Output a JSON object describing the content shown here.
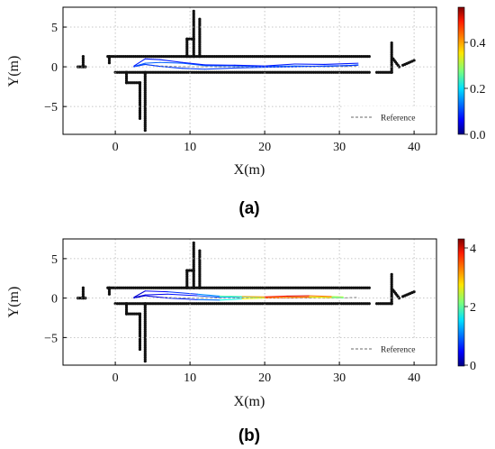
{
  "figure": {
    "panels": [
      {
        "caption": "(a)",
        "colorbar": {
          "ticks": [
            "0.0",
            "0.2",
            "0.4"
          ],
          "min": 0.0,
          "max": 0.55
        }
      },
      {
        "caption": "(b)",
        "colorbar": {
          "ticks": [
            "0",
            "2",
            "4"
          ],
          "min": 0.0,
          "max": 4.3
        }
      }
    ]
  },
  "chart_data": [
    {
      "type": "scatter",
      "panel": "a",
      "xlabel": "X(m)",
      "ylabel": "Y(m)",
      "xlim": [
        -7,
        43
      ],
      "ylim": [
        -8.5,
        7.5
      ],
      "xticks": [
        0,
        10,
        20,
        30,
        40
      ],
      "yticks": [
        5,
        0,
        -5
      ],
      "grid": true,
      "legend": {
        "entries": [
          "Reference"
        ],
        "placement": "lower-right"
      },
      "colormap": "jet",
      "colorbar_range": [
        0.0,
        0.55
      ],
      "reference": {
        "x": [
          2.5,
          3.5,
          6,
          10,
          15,
          20,
          25,
          30,
          32.5
        ],
        "y": [
          0,
          0.3,
          0.1,
          0,
          0,
          0,
          0,
          0,
          0.1
        ]
      },
      "trajectories": [
        {
          "x": [
            2.5,
            4,
            6,
            9,
            12,
            16,
            20,
            24,
            28,
            31,
            32.5
          ],
          "y": [
            0.05,
            0.45,
            0.55,
            0.45,
            0.15,
            0.1,
            0.05,
            0.1,
            0.05,
            0.15,
            0.25
          ],
          "error": 0.12
        },
        {
          "x": [
            2.5,
            4,
            6,
            9,
            12,
            16,
            20,
            24,
            28,
            31,
            32.5
          ],
          "y": [
            0,
            0.3,
            0.05,
            -0.2,
            -0.3,
            -0.15,
            -0.05,
            0,
            0.1,
            0.15,
            0.2
          ],
          "error": 0.1
        },
        {
          "x": [
            2.5,
            4,
            6,
            9,
            12,
            16,
            20,
            24,
            28,
            31,
            32.5
          ],
          "y": [
            0.1,
            1.0,
            0.9,
            0.55,
            0.25,
            0.2,
            0.1,
            0.35,
            0.3,
            0.4,
            0.45
          ],
          "error": 0.08
        }
      ],
      "map_segments": [
        {
          "x": [
            -1,
            34
          ],
          "y": [
            1.3,
            1.3
          ]
        },
        {
          "x": [
            0,
            34
          ],
          "y": [
            -0.7,
            -0.7
          ]
        },
        {
          "x": [
            -4.3,
            -4.3
          ],
          "y": [
            0,
            1.3
          ]
        },
        {
          "x": [
            -5,
            -4
          ],
          "y": [
            0,
            0
          ]
        },
        {
          "x": [
            -0.8,
            -0.8
          ],
          "y": [
            0.5,
            1.3
          ]
        },
        {
          "x": [
            1.5,
            1.5
          ],
          "y": [
            -0.7,
            -2
          ]
        },
        {
          "x": [
            1.5,
            3.3
          ],
          "y": [
            -2,
            -2
          ]
        },
        {
          "x": [
            3.3,
            3.3
          ],
          "y": [
            -2,
            -6.5
          ]
        },
        {
          "x": [
            4,
            4
          ],
          "y": [
            -0.7,
            -8
          ]
        },
        {
          "x": [
            9.6,
            9.6
          ],
          "y": [
            1.3,
            3.5
          ]
        },
        {
          "x": [
            10.5,
            10.5
          ],
          "y": [
            1.3,
            7
          ]
        },
        {
          "x": [
            11.3,
            11.3
          ],
          "y": [
            1.3,
            6
          ]
        },
        {
          "x": [
            9.6,
            10.5
          ],
          "y": [
            3.5,
            3.5
          ]
        },
        {
          "x": [
            35,
            37
          ],
          "y": [
            -0.7,
            -0.7
          ]
        },
        {
          "x": [
            37,
            37
          ],
          "y": [
            3,
            -0.7
          ]
        },
        {
          "x": [
            37.2,
            38
          ],
          "y": [
            1,
            0
          ]
        },
        {
          "x": [
            38.5,
            40
          ],
          "y": [
            0.2,
            0.8
          ]
        }
      ]
    },
    {
      "type": "scatter",
      "panel": "b",
      "xlabel": "X(m)",
      "ylabel": "Y(m)",
      "xlim": [
        -7,
        43
      ],
      "ylim": [
        -8.5,
        7.5
      ],
      "xticks": [
        0,
        10,
        20,
        30,
        40
      ],
      "yticks": [
        5,
        0,
        -5
      ],
      "grid": true,
      "legend": {
        "entries": [
          "Reference"
        ],
        "placement": "lower-right"
      },
      "colormap": "jet",
      "colorbar_range": [
        0.0,
        4.3
      ],
      "reference": {
        "x": [
          2.5,
          3.5,
          6,
          10,
          15,
          20,
          25,
          30,
          32.5
        ],
        "y": [
          0,
          0.3,
          0.1,
          0,
          0,
          0,
          0,
          0,
          0.1
        ]
      },
      "trajectories": [
        {
          "x": [
            2.5,
            4,
            7,
            11,
            14,
            17,
            20,
            23,
            26,
            29,
            30.5
          ],
          "y": [
            0.05,
            0.4,
            0.5,
            0.3,
            0.1,
            0.15,
            0.05,
            0.1,
            0.15,
            0.1,
            0.05
          ],
          "error": [
            0.3,
            0.4,
            0.5,
            0.7,
            1.0,
            1.6,
            2.4,
            3.0,
            2.8,
            2.0,
            1.6
          ]
        },
        {
          "x": [
            2.5,
            4,
            7,
            11,
            14,
            17,
            20,
            23,
            26,
            29,
            30.5
          ],
          "y": [
            0,
            0.3,
            0,
            -0.2,
            -0.25,
            -0.1,
            0,
            0.05,
            0.1,
            0.05,
            0.0
          ],
          "error": [
            0.3,
            0.4,
            0.5,
            0.8,
            1.2,
            2.2,
            3.2,
            3.6,
            3.2,
            2.4,
            1.8
          ]
        },
        {
          "x": [
            2.5,
            4,
            7,
            11,
            14,
            17,
            20,
            23,
            26,
            29,
            30.5
          ],
          "y": [
            0.1,
            0.9,
            0.8,
            0.5,
            0.25,
            0.2,
            0.15,
            0.25,
            0.3,
            0.2,
            0.15
          ],
          "error": [
            0.3,
            0.4,
            0.6,
            0.9,
            1.4,
            2.6,
            3.6,
            4.0,
            3.8,
            2.8,
            2.0
          ]
        }
      ],
      "map_segments": [
        {
          "x": [
            -1,
            34
          ],
          "y": [
            1.3,
            1.3
          ]
        },
        {
          "x": [
            0,
            34
          ],
          "y": [
            -0.7,
            -0.7
          ]
        },
        {
          "x": [
            -4.3,
            -4.3
          ],
          "y": [
            0,
            1.3
          ]
        },
        {
          "x": [
            -5,
            -4
          ],
          "y": [
            0,
            0
          ]
        },
        {
          "x": [
            -0.8,
            -0.8
          ],
          "y": [
            0.5,
            1.3
          ]
        },
        {
          "x": [
            1.5,
            1.5
          ],
          "y": [
            -0.7,
            -2
          ]
        },
        {
          "x": [
            1.5,
            3.3
          ],
          "y": [
            -2,
            -2
          ]
        },
        {
          "x": [
            3.3,
            3.3
          ],
          "y": [
            -2,
            -6.5
          ]
        },
        {
          "x": [
            4,
            4
          ],
          "y": [
            -0.7,
            -8
          ]
        },
        {
          "x": [
            9.6,
            9.6
          ],
          "y": [
            1.3,
            3.5
          ]
        },
        {
          "x": [
            10.5,
            10.5
          ],
          "y": [
            1.3,
            7
          ]
        },
        {
          "x": [
            11.3,
            11.3
          ],
          "y": [
            1.3,
            6
          ]
        },
        {
          "x": [
            9.6,
            10.5
          ],
          "y": [
            3.5,
            3.5
          ]
        },
        {
          "x": [
            35,
            37
          ],
          "y": [
            -0.7,
            -0.7
          ]
        },
        {
          "x": [
            37,
            37
          ],
          "y": [
            3,
            -0.7
          ]
        },
        {
          "x": [
            37.2,
            38
          ],
          "y": [
            1,
            0
          ]
        },
        {
          "x": [
            38.5,
            40
          ],
          "y": [
            0.2,
            0.8
          ]
        }
      ]
    }
  ]
}
